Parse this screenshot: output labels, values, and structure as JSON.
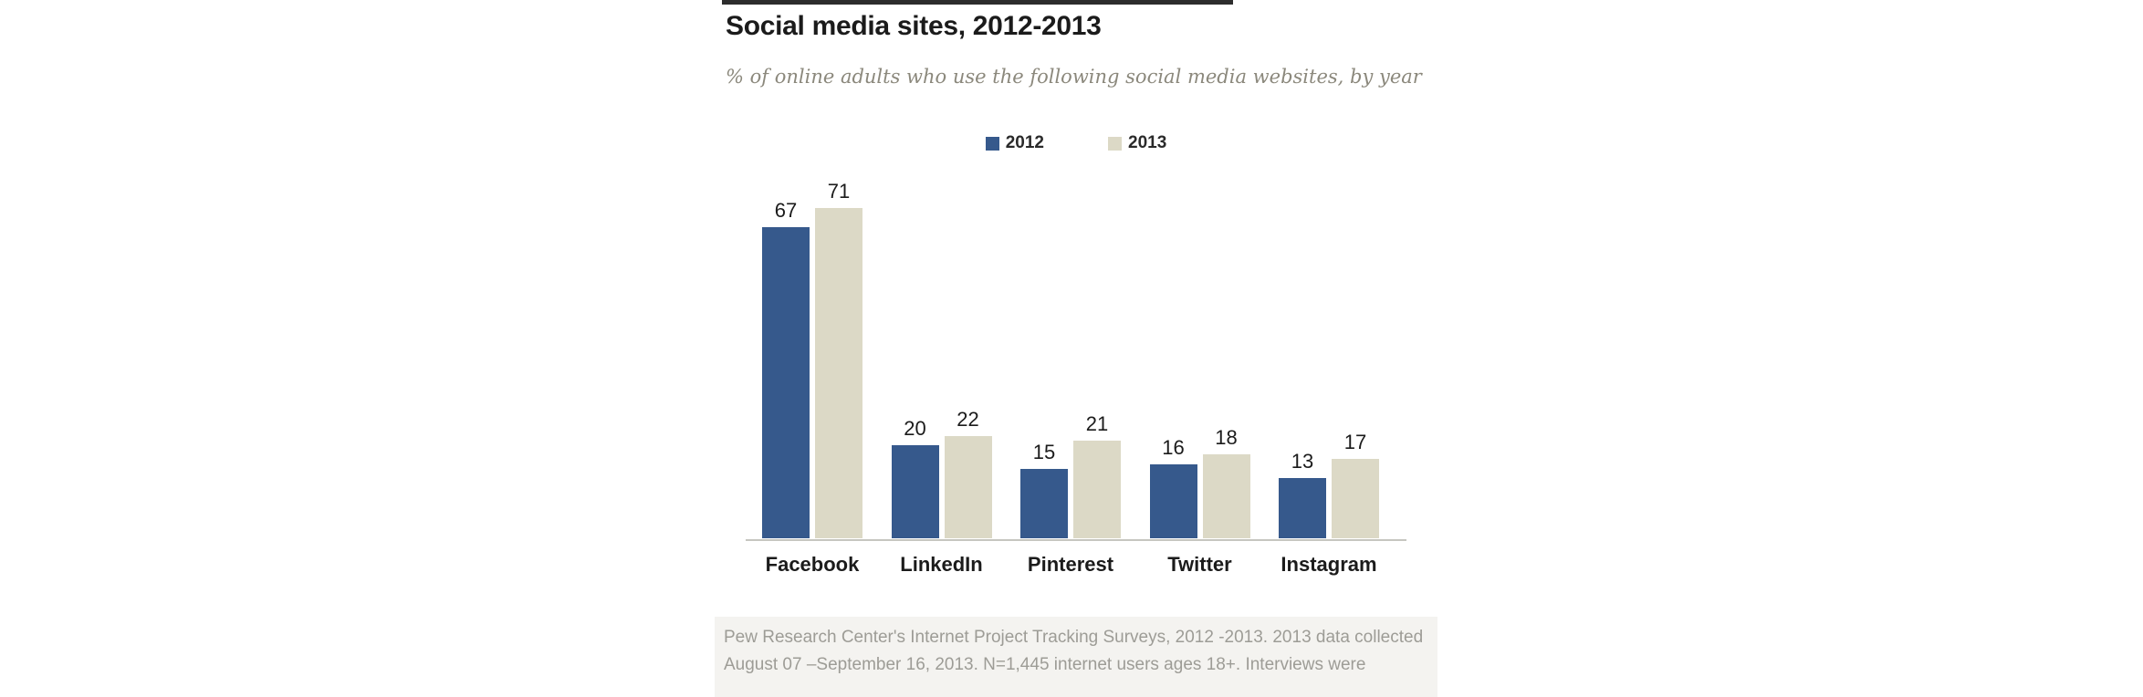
{
  "chart_data": {
    "type": "bar",
    "title": "Social media sites, 2012-2013",
    "subtitle": "% of online adults who use the following social media websites, by year",
    "categories": [
      "Facebook",
      "LinkedIn",
      "Pinterest",
      "Twitter",
      "Instagram"
    ],
    "series": [
      {
        "name": "2012",
        "color": "#36598C",
        "values": [
          67,
          20,
          15,
          16,
          13
        ]
      },
      {
        "name": "2013",
        "color": "#DCD9C6",
        "values": [
          71,
          22,
          21,
          18,
          17
        ]
      }
    ],
    "ylim": [
      0,
      75
    ],
    "grid": false,
    "legend_position": "top-center",
    "value_labels": true,
    "xlabel": "",
    "ylabel": ""
  },
  "footer": {
    "line1": "Pew Research Center's Internet Project Tracking Surveys, 2012 -2013. 2013 data collected",
    "line2": "August 07 –September 16, 2013.  N=1,445 internet users ages 18+. Interviews were"
  }
}
